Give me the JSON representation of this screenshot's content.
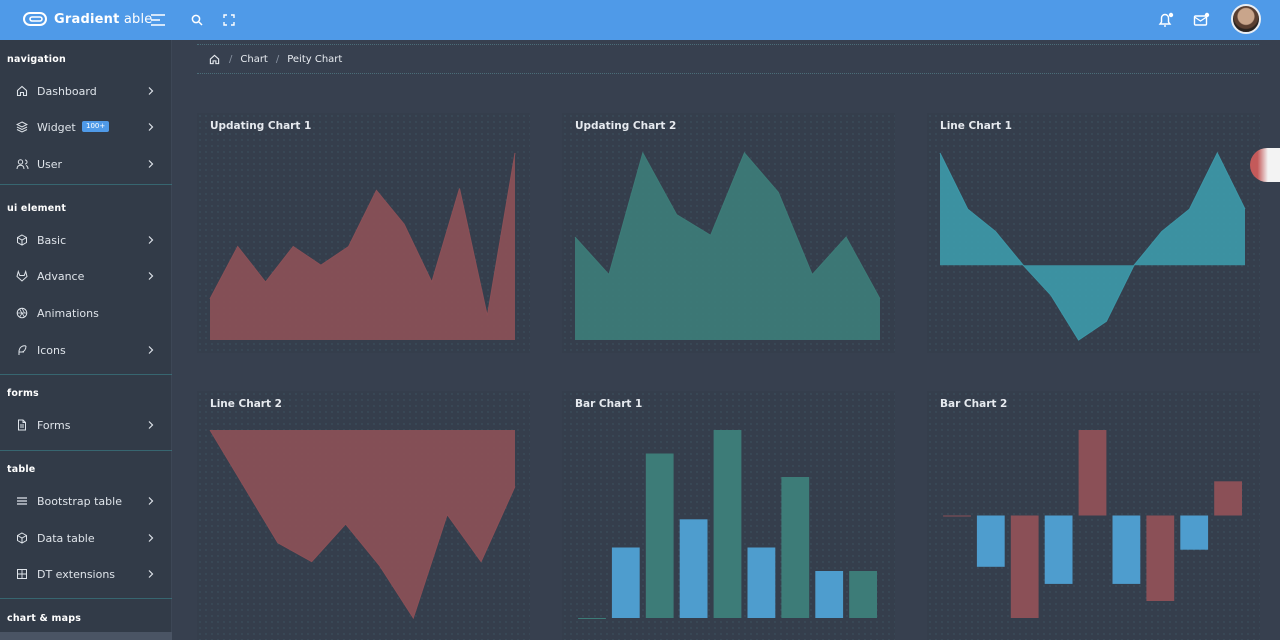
{
  "brand": {
    "name_bold": "Gradient",
    "name_light": " able"
  },
  "sidebar": {
    "sections": [
      {
        "caption": "navigation",
        "items": [
          {
            "label": "Dashboard",
            "icon": "home-icon",
            "chevron": true
          },
          {
            "label": "Widget",
            "icon": "layers-icon",
            "badge": "100+",
            "chevron": true
          },
          {
            "label": "User",
            "icon": "users-icon",
            "chevron": true
          }
        ]
      },
      {
        "caption": "ui element",
        "items": [
          {
            "label": "Basic",
            "icon": "box-icon",
            "chevron": true
          },
          {
            "label": "Advance",
            "icon": "gitlab-icon",
            "chevron": true
          },
          {
            "label": "Animations",
            "icon": "aperture-icon",
            "chevron": false
          },
          {
            "label": "Icons",
            "icon": "feather-icon",
            "chevron": true
          }
        ]
      },
      {
        "caption": "forms",
        "items": [
          {
            "label": "Forms",
            "icon": "file-text-icon",
            "chevron": true
          }
        ]
      },
      {
        "caption": "table",
        "items": [
          {
            "label": "Bootstrap table",
            "icon": "list-icon",
            "chevron": true
          },
          {
            "label": "Data table",
            "icon": "box-icon",
            "chevron": true
          },
          {
            "label": "DT extensions",
            "icon": "columns-icon",
            "chevron": true
          }
        ]
      },
      {
        "caption": "chart & maps",
        "items": []
      }
    ]
  },
  "breadcrumb": {
    "items": [
      "Chart",
      "Peity Chart"
    ]
  },
  "colors": {
    "red": "#8b5057",
    "teal": "#3d7c78",
    "cyan": "#3d98a8",
    "blue": "#4e9dce"
  },
  "cards": [
    {
      "title": "Updating Chart 1"
    },
    {
      "title": "Updating Chart 2"
    },
    {
      "title": "Line Chart 1"
    },
    {
      "title": "Line Chart 2"
    },
    {
      "title": "Bar Chart 1"
    },
    {
      "title": "Bar Chart 2"
    }
  ],
  "chart_data": [
    {
      "type": "area",
      "color": "#8b5057",
      "ylim": [
        0,
        10
      ],
      "values": [
        2.2,
        5,
        3.1,
        5,
        4,
        5,
        8,
        6.2,
        3.1,
        8.1,
        1.3,
        10
      ]
    },
    {
      "type": "area",
      "color": "#3d7c78",
      "ylim": [
        0,
        10
      ],
      "values": [
        5.5,
        3.5,
        10,
        6.7,
        5.6,
        10,
        7.9,
        3.5,
        5.5,
        2.2
      ]
    },
    {
      "type": "line",
      "color": "#3d98a8",
      "ylim": [
        -2,
        3
      ],
      "values": [
        3,
        1.5,
        0.9,
        0,
        -0.8,
        -2,
        -1.5,
        0,
        0.9,
        1.5,
        3,
        1.5
      ]
    },
    {
      "type": "line",
      "color": "#8b5057",
      "ylim": [
        -10,
        0
      ],
      "values": [
        0,
        -3,
        -6,
        -7,
        -5,
        -7.2,
        -10,
        -4.5,
        -7,
        -3
      ]
    },
    {
      "type": "bar",
      "colors": [
        "#3d7c78",
        "#4e9dce"
      ],
      "ylim": [
        0,
        8
      ],
      "values": [
        0,
        3,
        7,
        4.2,
        8,
        3,
        6,
        2,
        2
      ]
    },
    {
      "type": "bar",
      "colors": [
        "#8b5057",
        "#4e9dce"
      ],
      "ylim": [
        -6,
        5
      ],
      "values": [
        0,
        -3,
        -6,
        -4,
        5,
        -4,
        -5,
        -2,
        2
      ]
    }
  ]
}
